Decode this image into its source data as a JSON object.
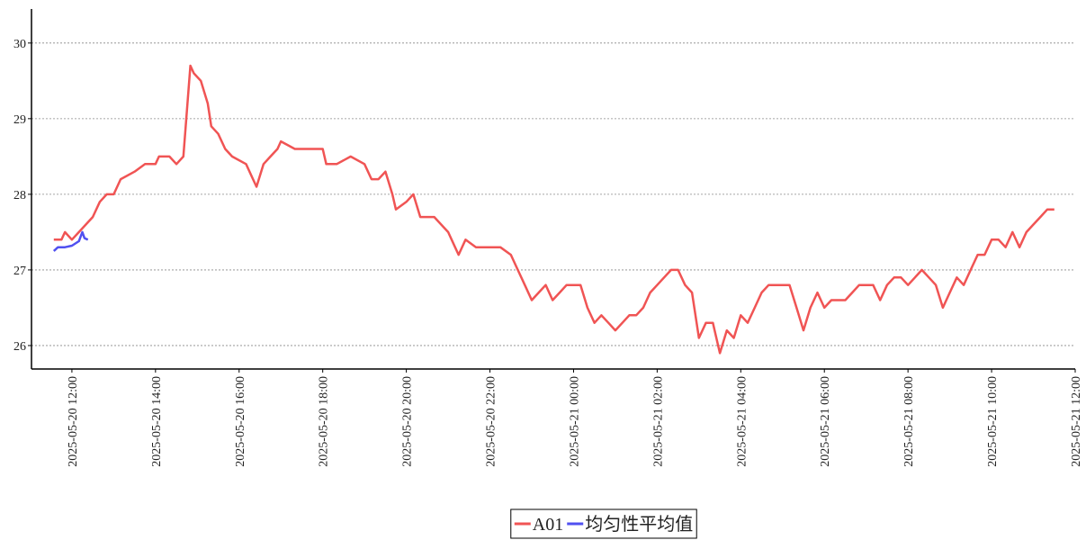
{
  "chart_data": {
    "type": "line",
    "x": [
      "2025-05-20 11:34",
      "2025-05-20 11:45",
      "2025-05-20 11:50",
      "2025-05-20 12:00",
      "2025-05-20 12:10",
      "2025-05-20 12:20",
      "2025-05-20 12:30",
      "2025-05-20 12:40",
      "2025-05-20 12:50",
      "2025-05-20 13:00",
      "2025-05-20 13:10",
      "2025-05-20 13:30",
      "2025-05-20 13:45",
      "2025-05-20 14:00",
      "2025-05-20 14:05",
      "2025-05-20 14:20",
      "2025-05-20 14:30",
      "2025-05-20 14:40",
      "2025-05-20 14:50",
      "2025-05-20 14:55",
      "2025-05-20 15:05",
      "2025-05-20 15:15",
      "2025-05-20 15:20",
      "2025-05-20 15:30",
      "2025-05-20 15:40",
      "2025-05-20 15:50",
      "2025-05-20 16:10",
      "2025-05-20 16:20",
      "2025-05-20 16:25",
      "2025-05-20 16:35",
      "2025-05-20 16:45",
      "2025-05-20 16:55",
      "2025-05-20 17:00",
      "2025-05-20 17:20",
      "2025-05-20 17:40",
      "2025-05-20 18:00",
      "2025-05-20 18:05",
      "2025-05-20 18:20",
      "2025-05-20 18:40",
      "2025-05-20 19:00",
      "2025-05-20 19:10",
      "2025-05-20 19:20",
      "2025-05-20 19:30",
      "2025-05-20 19:40",
      "2025-05-20 19:45",
      "2025-05-20 20:00",
      "2025-05-20 20:10",
      "2025-05-20 20:20",
      "2025-05-20 20:40",
      "2025-05-20 21:00",
      "2025-05-20 21:10",
      "2025-05-20 21:15",
      "2025-05-20 21:25",
      "2025-05-20 21:40",
      "2025-05-20 22:00",
      "2025-05-20 22:15",
      "2025-05-20 22:30",
      "2025-05-20 22:40",
      "2025-05-20 22:50",
      "2025-05-20 23:00",
      "2025-05-20 23:10",
      "2025-05-20 23:20",
      "2025-05-20 23:30",
      "2025-05-20 23:40",
      "2025-05-20 23:50",
      "2025-05-21 00:00",
      "2025-05-21 00:10",
      "2025-05-21 00:20",
      "2025-05-21 00:30",
      "2025-05-21 00:40",
      "2025-05-21 00:50",
      "2025-05-21 01:00",
      "2025-05-21 01:10",
      "2025-05-21 01:20",
      "2025-05-21 01:30",
      "2025-05-21 01:40",
      "2025-05-21 01:50",
      "2025-05-21 02:00",
      "2025-05-21 02:10",
      "2025-05-21 02:20",
      "2025-05-21 02:30",
      "2025-05-21 02:40",
      "2025-05-21 02:50",
      "2025-05-21 03:00",
      "2025-05-21 03:10",
      "2025-05-21 03:20",
      "2025-05-21 03:30",
      "2025-05-21 03:40",
      "2025-05-21 03:50",
      "2025-05-21 04:00",
      "2025-05-21 04:10",
      "2025-05-21 04:20",
      "2025-05-21 04:30",
      "2025-05-21 04:40",
      "2025-05-21 04:50",
      "2025-05-21 05:00",
      "2025-05-21 05:10",
      "2025-05-21 05:20",
      "2025-05-21 05:30",
      "2025-05-21 05:40",
      "2025-05-21 05:50",
      "2025-05-21 06:00",
      "2025-05-21 06:10",
      "2025-05-21 06:20",
      "2025-05-21 06:30",
      "2025-05-21 06:40",
      "2025-05-21 06:50",
      "2025-05-21 07:00",
      "2025-05-21 07:10",
      "2025-05-21 07:20",
      "2025-05-21 07:30",
      "2025-05-21 07:40",
      "2025-05-21 07:50",
      "2025-05-21 08:00",
      "2025-05-21 08:10",
      "2025-05-21 08:20",
      "2025-05-21 08:30",
      "2025-05-21 08:40",
      "2025-05-21 08:50",
      "2025-05-21 09:00",
      "2025-05-21 09:10",
      "2025-05-21 09:20",
      "2025-05-21 09:30",
      "2025-05-21 09:40",
      "2025-05-21 09:50",
      "2025-05-21 10:00",
      "2025-05-21 10:10",
      "2025-05-21 10:20",
      "2025-05-21 10:30",
      "2025-05-21 10:40",
      "2025-05-21 10:50",
      "2025-05-21 11:00",
      "2025-05-21 11:10",
      "2025-05-21 11:20",
      "2025-05-21 11:30"
    ],
    "series": [
      {
        "name": "A01",
        "color": "#f05454",
        "values": [
          27.4,
          27.4,
          27.5,
          27.4,
          27.5,
          27.6,
          27.7,
          27.9,
          28.0,
          28.0,
          28.2,
          28.3,
          28.4,
          28.4,
          28.5,
          28.5,
          28.4,
          28.5,
          29.7,
          29.6,
          29.5,
          29.2,
          28.9,
          28.8,
          28.6,
          28.5,
          28.4,
          28.2,
          28.1,
          28.4,
          28.5,
          28.6,
          28.7,
          28.6,
          28.6,
          28.6,
          28.4,
          28.4,
          28.5,
          28.4,
          28.2,
          28.2,
          28.3,
          28.0,
          27.8,
          27.9,
          28.0,
          27.7,
          27.7,
          27.5,
          27.3,
          27.2,
          27.4,
          27.3,
          27.3,
          27.3,
          27.2,
          27.0,
          26.8,
          26.6,
          26.7,
          26.8,
          26.6,
          26.7,
          26.8,
          26.8,
          26.8,
          26.5,
          26.3,
          26.4,
          26.3,
          26.2,
          26.3,
          26.4,
          26.4,
          26.5,
          26.7,
          26.8,
          26.9,
          27.0,
          27.0,
          26.8,
          26.7,
          26.1,
          26.3,
          26.3,
          25.9,
          26.2,
          26.1,
          26.4,
          26.3,
          26.5,
          26.7,
          26.8,
          26.8,
          26.8,
          26.8,
          26.5,
          26.2,
          26.5,
          26.7,
          26.5,
          26.6,
          26.6,
          26.6,
          26.7,
          26.8,
          26.8,
          26.8,
          26.6,
          26.8,
          26.9,
          26.9,
          26.8,
          26.9,
          27.0,
          26.9,
          26.8,
          26.5,
          26.7,
          26.9,
          26.8,
          27.0,
          27.2,
          27.2,
          27.4,
          27.4,
          27.3,
          27.5,
          27.3,
          27.5,
          27.6,
          27.7,
          27.8,
          27.8
        ]
      },
      {
        "name": "均匀性平均值",
        "color": "#5050f0",
        "x": [
          "2025-05-20 11:34",
          "2025-05-20 11:40",
          "2025-05-20 11:50",
          "2025-05-20 12:00",
          "2025-05-20 12:05",
          "2025-05-20 12:10",
          "2025-05-20 12:15",
          "2025-05-20 12:18",
          "2025-05-20 12:23"
        ],
        "values": [
          27.25,
          27.3,
          27.3,
          27.32,
          27.35,
          27.38,
          27.5,
          27.42,
          27.4
        ]
      }
    ],
    "xlim": [
      "2025-05-20 11:02",
      "2025-05-21 12:00"
    ],
    "xticks": [
      "2025-05-20 12:00",
      "2025-05-20 14:00",
      "2025-05-20 16:00",
      "2025-05-20 18:00",
      "2025-05-20 20:00",
      "2025-05-20 22:00",
      "2025-05-21 00:00",
      "2025-05-21 02:00",
      "2025-05-21 04:00",
      "2025-05-21 06:00",
      "2025-05-21 08:00",
      "2025-05-21 10:00",
      "2025-05-21 12:00"
    ],
    "ylim": [
      25.69,
      30.45
    ],
    "yticks": [
      26,
      27,
      28,
      29,
      30
    ],
    "grid": true,
    "legend": "bottom"
  }
}
